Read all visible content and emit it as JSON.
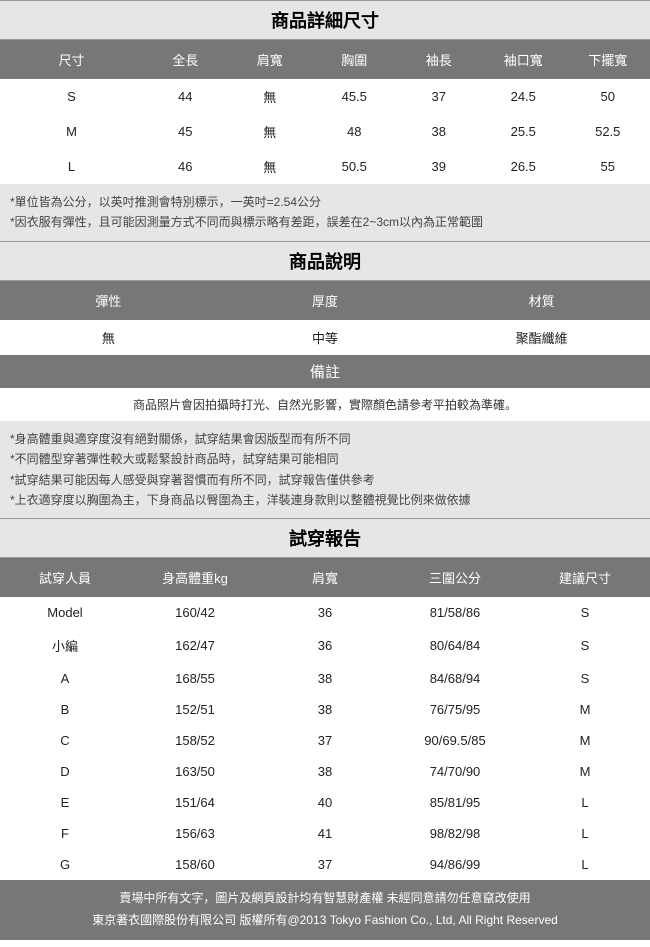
{
  "size_section": {
    "title": "商品詳細尺寸",
    "headers": [
      "尺寸",
      "全長",
      "肩寬",
      "胸圍",
      "袖長",
      "袖口寬",
      "下擺寬"
    ],
    "rows": [
      [
        "S",
        "44",
        "無",
        "45.5",
        "37",
        "24.5",
        "50"
      ],
      [
        "M",
        "45",
        "無",
        "48",
        "38",
        "25.5",
        "52.5"
      ],
      [
        "L",
        "46",
        "無",
        "50.5",
        "39",
        "26.5",
        "55"
      ]
    ],
    "notes": [
      "*單位皆為公分，以英吋推測會特別標示，一英吋=2.54公分",
      "*因衣服有彈性，且可能因測量方式不同而與標示略有差距，誤差在2~3cm以內為正常範圍"
    ]
  },
  "desc_section": {
    "title": "商品說明",
    "headers": [
      "彈性",
      "厚度",
      "材質"
    ],
    "row": [
      "無",
      "中等",
      "聚酯纖維"
    ]
  },
  "remark_section": {
    "title": "備註",
    "text": "商品照片會因拍攝時打光、自然光影響，實際顏色請參考平拍較為準確。",
    "notes": [
      "*身高體重與適穿度沒有絕對關係，試穿結果會因版型而有所不同",
      "*不同體型穿著彈性較大或鬆緊設計商品時，試穿結果可能相同",
      "*試穿結果可能因每人感受與穿著習慣而有所不同，試穿報告僅供參考",
      "*上衣適穿度以胸圍為主，下身商品以臀圍為主，洋裝連身款則以整體視覺比例來做依據"
    ]
  },
  "fit_section": {
    "title": "試穿報告",
    "headers": [
      "試穿人員",
      "身高體重kg",
      "肩寬",
      "三圍公分",
      "建議尺寸"
    ],
    "rows": [
      [
        "Model",
        "160/42",
        "36",
        "81/58/86",
        "S"
      ],
      [
        "小編",
        "162/47",
        "36",
        "80/64/84",
        "S"
      ],
      [
        "A",
        "168/55",
        "38",
        "84/68/94",
        "S"
      ],
      [
        "B",
        "152/51",
        "38",
        "76/75/95",
        "M"
      ],
      [
        "C",
        "158/52",
        "37",
        "90/69.5/85",
        "M"
      ],
      [
        "D",
        "163/50",
        "38",
        "74/70/90",
        "M"
      ],
      [
        "E",
        "151/64",
        "40",
        "85/81/95",
        "L"
      ],
      [
        "F",
        "156/63",
        "41",
        "98/82/98",
        "L"
      ],
      [
        "G",
        "158/60",
        "37",
        "94/86/99",
        "L"
      ]
    ]
  },
  "footer": {
    "line1": "賣場中所有文字，圖片及網頁設計均有智慧財產權 未經同意請勿任意竄改使用",
    "line2": "東京著衣國際股份有限公司 版權所有@2013 Tokyo Fashion Co., Ltd, All Right Reserved"
  }
}
